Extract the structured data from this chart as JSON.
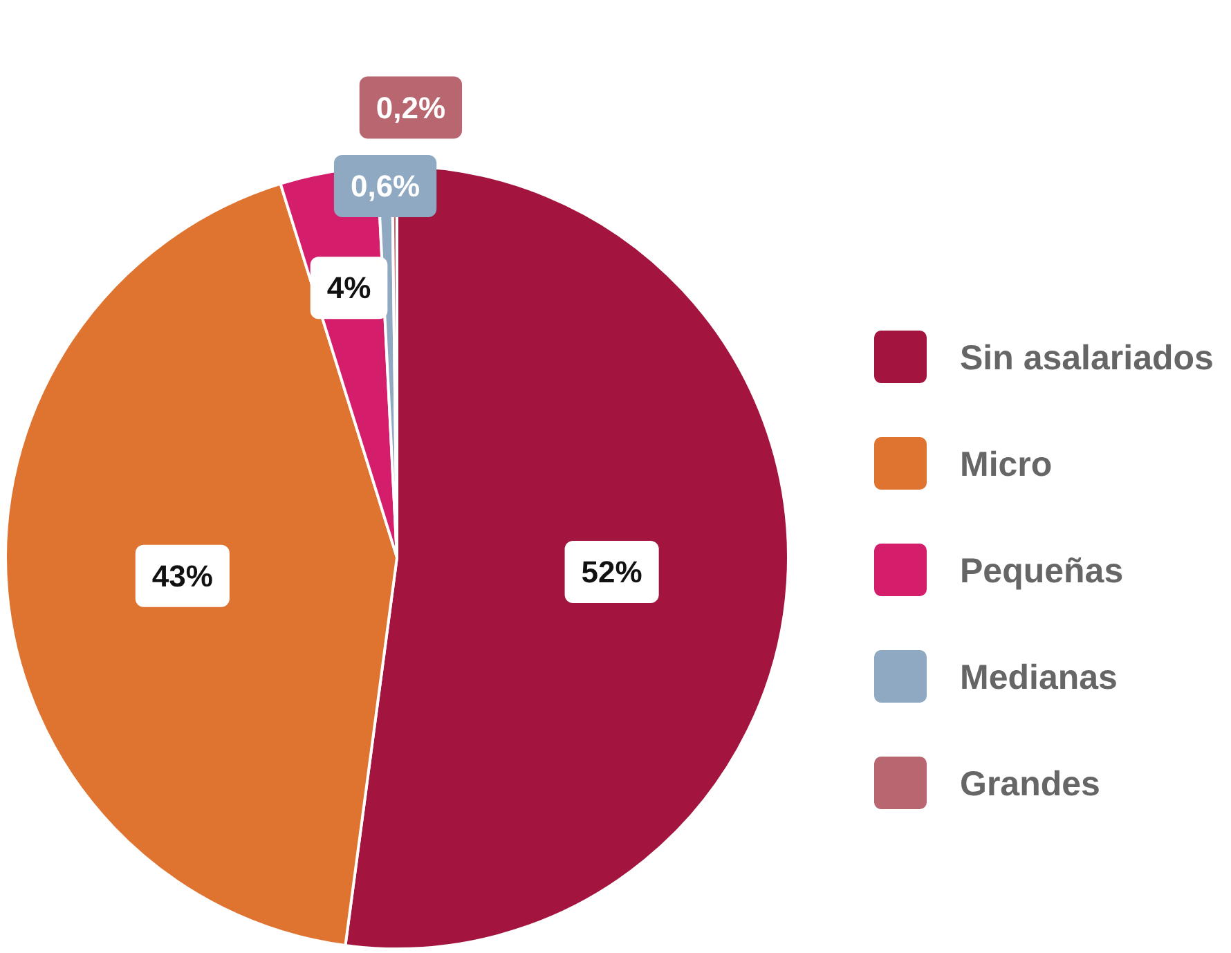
{
  "chart_data": {
    "type": "pie",
    "categories": [
      "Sin asalariados",
      "Micro",
      "Pequeñas",
      "Medianas",
      "Grandes"
    ],
    "values": [
      52,
      43,
      4,
      0.6,
      0.2
    ],
    "value_labels": [
      "52%",
      "43%",
      "4%",
      "0,6%",
      "0,2%"
    ],
    "colors": [
      "#a3143f",
      "#df7330",
      "#d41e6c",
      "#8fa9c2",
      "#b86670"
    ],
    "legend": "right"
  }
}
